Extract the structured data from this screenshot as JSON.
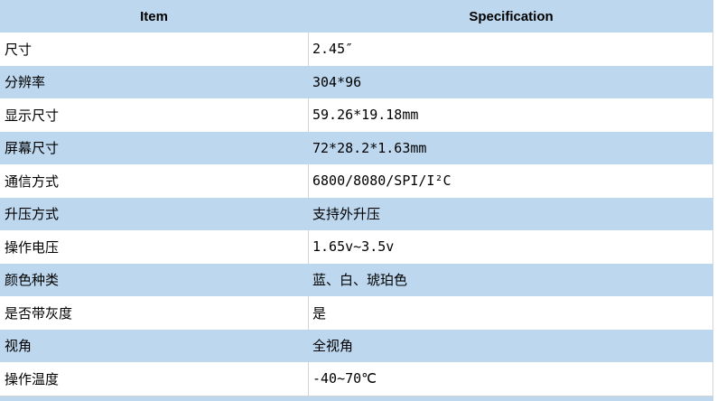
{
  "table": {
    "header": {
      "item": "Item",
      "spec": "Specification"
    },
    "rows": [
      {
        "item": "尺寸",
        "spec": "2.45″"
      },
      {
        "item": "分辨率",
        "spec": "304*96"
      },
      {
        "item": "显示尺寸",
        "spec": "59.26*19.18mm"
      },
      {
        "item": "屏幕尺寸",
        "spec": "72*28.2*1.63mm"
      },
      {
        "item": "通信方式",
        "spec": "6800/8080/SPI/I²C"
      },
      {
        "item": "升压方式",
        "spec": "支持外升压"
      },
      {
        "item": "操作电压",
        "spec": "1.65v~3.5v"
      },
      {
        "item": "颜色种类",
        "spec": "蓝、白、琥珀色"
      },
      {
        "item": "是否带灰度",
        "spec": "是"
      },
      {
        "item": "视角",
        "spec": "全视角"
      },
      {
        "item": "操作温度",
        "spec": "-40~70℃"
      }
    ]
  },
  "colors": {
    "stripe_blue": "#BDD7EE",
    "border_gray": "#D4D4D4",
    "text": "#000000"
  }
}
